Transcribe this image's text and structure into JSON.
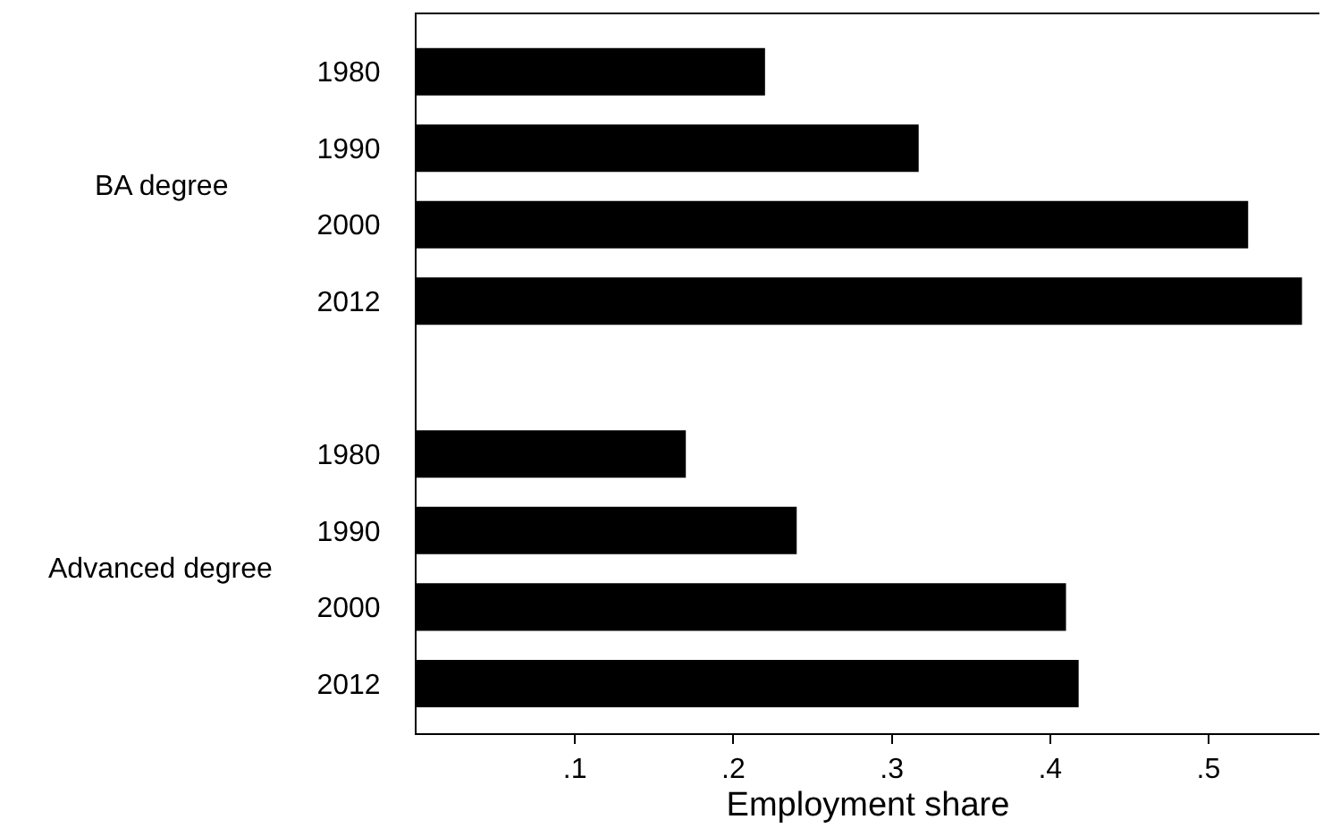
{
  "chart_data": {
    "type": "bar",
    "orientation": "horizontal",
    "xlabel": "Employment share",
    "categories": [
      "1980",
      "1990",
      "2000",
      "2012",
      null,
      "1980",
      "1990",
      "2000",
      "2012"
    ],
    "values": [
      0.22,
      0.317,
      0.525,
      0.559,
      null,
      0.17,
      0.24,
      0.41,
      0.418
    ],
    "color": "#000000",
    "annotations": [
      "BA degree",
      "Advanced degree"
    ],
    "xlim": [
      0,
      0.57
    ],
    "xticks": [
      {
        "value": 0.1,
        "label": ".1"
      },
      {
        "value": 0.2,
        "label": ".2"
      },
      {
        "value": 0.3,
        "label": ".3"
      },
      {
        "value": 0.4,
        "label": ".4"
      },
      {
        "value": 0.5,
        "label": ".5"
      }
    ]
  }
}
